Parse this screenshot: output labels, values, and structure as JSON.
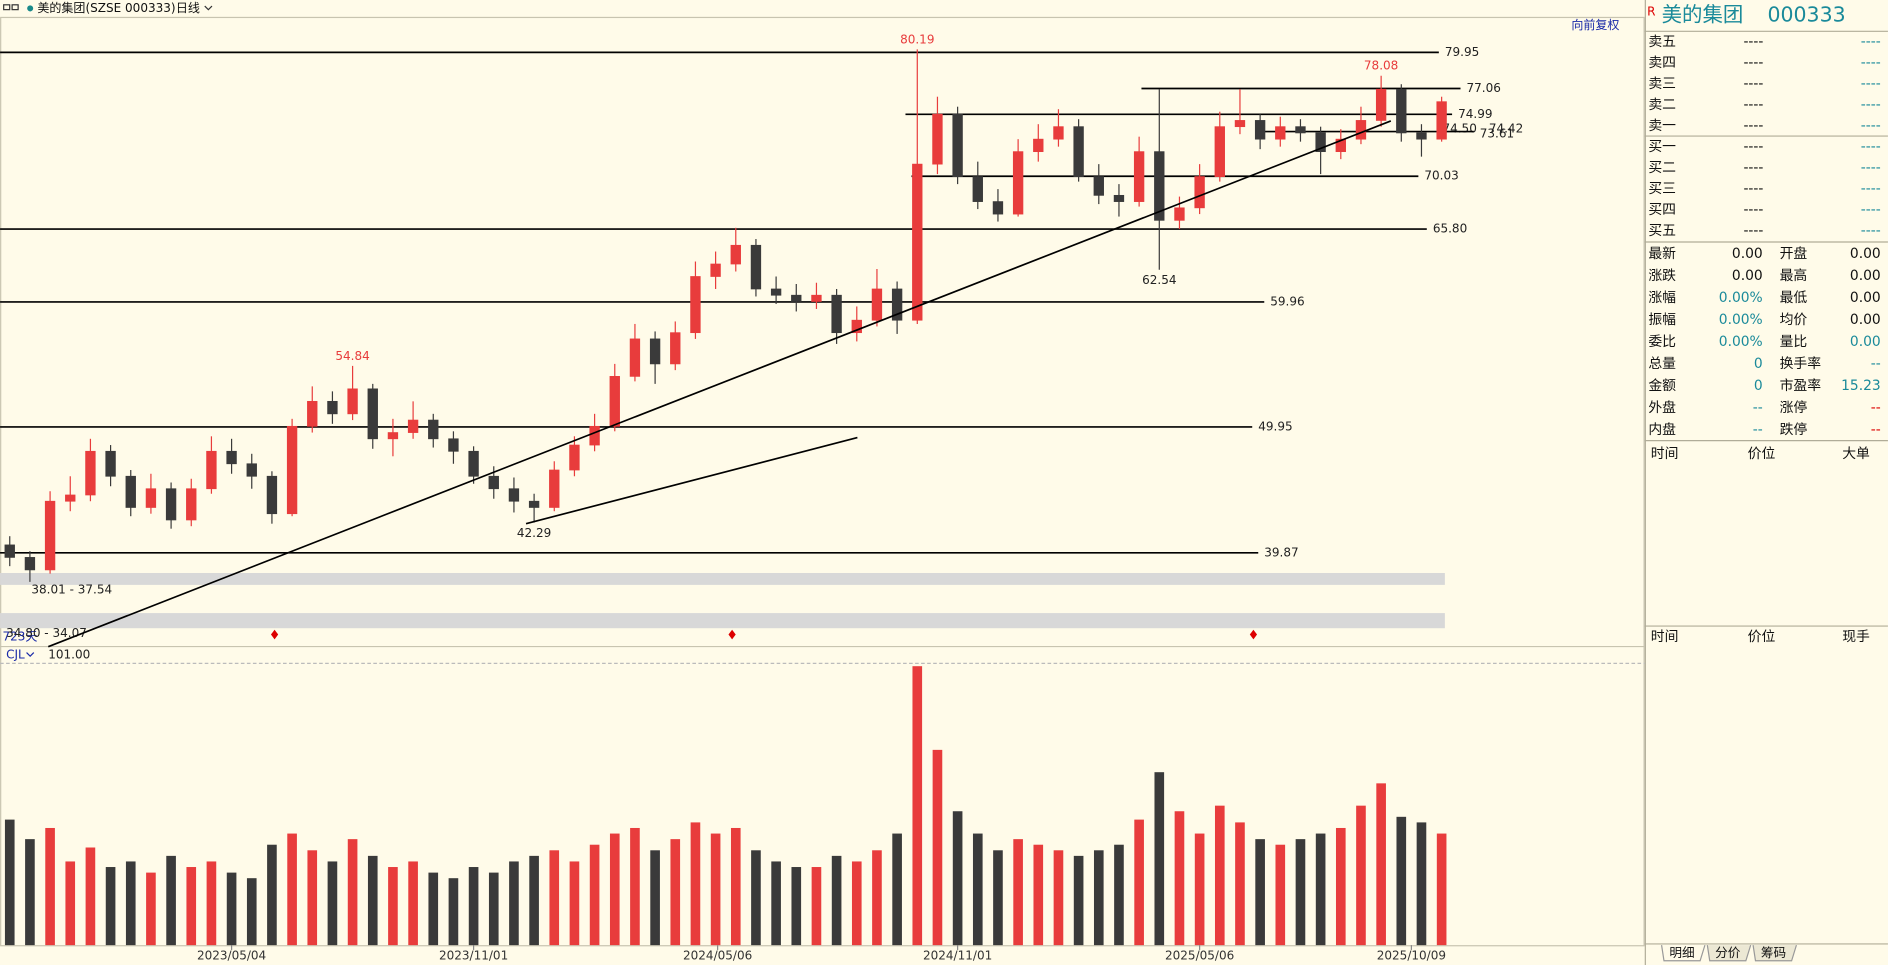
{
  "header": {
    "name": "美的集团(SZSE 000333)",
    "period": "日线",
    "adjust": "向前复权",
    "days": "723天"
  },
  "chart_data": {
    "type": "candlestick",
    "xlim": [
      -0.48,
      71.16
    ],
    "ylim": [
      34,
      82.7
    ],
    "xticks": [
      {
        "value": 11,
        "label": "2023/05/04"
      },
      {
        "value": 23,
        "label": "2023/11/01"
      },
      {
        "value": 35.1,
        "label": "2024/05/06"
      },
      {
        "value": 47,
        "label": "2024/11/01"
      },
      {
        "value": 59,
        "label": "2025/05/06"
      },
      {
        "value": 69.5,
        "label": "2025/10/09"
      }
    ],
    "up_color": "#e83c3c",
    "down_color": "#3a3a3a",
    "open": [
      40.5,
      39.5,
      38.5,
      44,
      44.5,
      48,
      46,
      43.5,
      45,
      42.5,
      45,
      48,
      47,
      46,
      43,
      50,
      52,
      51,
      53,
      49,
      49.5,
      50.5,
      49,
      48,
      46,
      45,
      44,
      43.5,
      46.5,
      48.5,
      50,
      54,
      57,
      55,
      57.5,
      62,
      63,
      64.5,
      61,
      60.5,
      60,
      60.5,
      57.5,
      58.5,
      61,
      58.5,
      71,
      75,
      70,
      68,
      67,
      72,
      73,
      74,
      70,
      68.5,
      68,
      72,
      66.5,
      67.5,
      70,
      74,
      74.5,
      73,
      74,
      73.5,
      72,
      73,
      74.5,
      77,
      73.5,
      73
    ],
    "high": [
      41.2,
      40,
      44.8,
      46,
      49,
      48.5,
      46.5,
      46.2,
      45.5,
      45.8,
      49.2,
      49,
      47.8,
      46.4,
      50.6,
      53.2,
      52.8,
      54.84,
      53.4,
      50.6,
      52,
      51,
      49.6,
      48.4,
      46.8,
      45.9,
      44.6,
      47.2,
      49.2,
      51,
      55,
      58.2,
      57.6,
      58.4,
      63.2,
      64,
      65.9,
      65,
      62,
      61.4,
      61.5,
      61,
      59.6,
      62.6,
      61.6,
      80.19,
      76.4,
      75.6,
      71.2,
      69,
      73,
      74.2,
      75.4,
      74.6,
      71,
      69.4,
      73.2,
      77,
      68.4,
      71,
      75.2,
      77,
      75,
      74.8,
      74.6,
      74,
      73.8,
      75.6,
      78.08,
      77.4,
      74.2,
      76.4
    ],
    "low": [
      38.8,
      37.54,
      38.2,
      43.2,
      44,
      45.2,
      42.8,
      43,
      41.8,
      42,
      44.6,
      46.2,
      45,
      42.2,
      42.8,
      49.5,
      50.2,
      50.5,
      48.2,
      47.6,
      49,
      48.3,
      47,
      45.4,
      44.2,
      43.1,
      42.29,
      43.2,
      46,
      48,
      49.6,
      53.6,
      53.4,
      54.5,
      57,
      61,
      62.4,
      60.4,
      59.8,
      59.2,
      59.4,
      56.6,
      56.8,
      58,
      57.4,
      58.2,
      70.2,
      69.4,
      67.4,
      66.4,
      66.8,
      71.2,
      72.4,
      69.6,
      67.8,
      66.8,
      67.6,
      62.54,
      65.8,
      67,
      69.6,
      73.4,
      72.2,
      72.4,
      72.8,
      70.2,
      71.4,
      72.6,
      74,
      72.8,
      71.6,
      72.8
    ],
    "close": [
      39.5,
      38.5,
      44,
      44.5,
      48,
      46,
      43.5,
      45,
      42.5,
      45,
      48,
      47,
      46,
      43,
      50,
      52,
      51,
      53,
      49,
      49.5,
      50.5,
      49,
      48,
      46,
      45,
      44,
      43.5,
      46.5,
      48.5,
      50,
      54,
      57,
      55,
      57.5,
      62,
      63,
      64.5,
      61,
      60.5,
      60,
      60.5,
      57.5,
      58.5,
      61,
      58.5,
      71,
      75,
      70,
      68,
      67,
      72,
      73,
      74,
      70,
      68.5,
      68,
      72,
      66.5,
      67.5,
      70,
      74,
      74.5,
      73,
      74,
      73.5,
      72,
      73,
      74.5,
      77,
      73.5,
      73,
      76
    ],
    "volume": [
      45,
      38,
      42,
      30,
      35,
      28,
      30,
      26,
      32,
      28,
      30,
      26,
      24,
      36,
      40,
      34,
      30,
      38,
      32,
      28,
      30,
      26,
      24,
      28,
      26,
      30,
      32,
      34,
      30,
      36,
      40,
      42,
      34,
      38,
      44,
      40,
      42,
      34,
      30,
      28,
      28,
      32,
      30,
      34,
      40,
      100,
      70,
      48,
      40,
      34,
      38,
      36,
      34,
      32,
      34,
      36,
      45,
      62,
      48,
      40,
      50,
      44,
      38,
      36,
      38,
      40,
      42,
      50,
      58,
      46,
      44,
      40
    ],
    "volume_name": "CJL",
    "volume_ylim": [
      0,
      101
    ],
    "volume_ticks": [
      {
        "value": 101,
        "label": "101.00"
      }
    ],
    "levels": [
      79.95,
      77.06,
      74.99,
      73.61,
      70.03,
      {
        "value": 65.8,
        "label": "65.80"
      },
      59.96,
      49.95,
      39.87
    ],
    "zones": [
      {
        "high": 74.5,
        "low": 74.42,
        "label": "74.50 - 74.42",
        "band": false
      },
      {
        "high": 38.01,
        "low": 37.54,
        "label": "38.01 - 37.54",
        "band": true
      },
      {
        "high": 34.8,
        "low": 34.07,
        "label": "34.80 - 34.07",
        "band": true
      }
    ],
    "trendlines": [
      {
        "start": [
          1.91,
          32.35
        ],
        "end": [
          68.48,
          74.46
        ]
      },
      {
        "start": [
          25.6,
          42.2
        ],
        "end": [
          42.03,
          49.1
        ]
      }
    ]
  },
  "quote_panel": {
    "badge": "R",
    "name": "美的集团",
    "code": "000333",
    "asks": [
      [
        "卖五",
        "----",
        "----"
      ],
      [
        "卖四",
        "----",
        "----"
      ],
      [
        "卖三",
        "----",
        "----"
      ],
      [
        "卖二",
        "----",
        "----"
      ],
      [
        "卖一",
        "----",
        "----"
      ]
    ],
    "bids": [
      [
        "买一",
        "----",
        "----"
      ],
      [
        "买二",
        "----",
        "----"
      ],
      [
        "买三",
        "----",
        "----"
      ],
      [
        "买四",
        "----",
        "----"
      ],
      [
        "买五",
        "----",
        "----"
      ]
    ],
    "stats": [
      [
        "最新",
        "0.00",
        "开盘",
        "0.00"
      ],
      [
        "涨跌",
        "0.00",
        "最高",
        "0.00"
      ],
      [
        "涨幅",
        "0.00%",
        "最低",
        "0.00"
      ],
      [
        "振幅",
        "0.00%",
        "均价",
        "0.00"
      ],
      [
        "委比",
        "0.00%",
        "量比",
        "0.00"
      ],
      [
        "总量",
        "0",
        "换手率",
        "--"
      ],
      [
        "金额",
        "0",
        "市盈率",
        "15.23"
      ],
      [
        "外盘",
        "--",
        "涨停",
        "--"
      ],
      [
        "内盘",
        "--",
        "跌停",
        "--"
      ]
    ],
    "detail_headers": [
      "时间",
      "价位",
      "大单"
    ],
    "trade_headers": [
      "时间",
      "价位",
      "现手"
    ],
    "tabs": [
      "明细",
      "分价",
      "筹码"
    ]
  }
}
